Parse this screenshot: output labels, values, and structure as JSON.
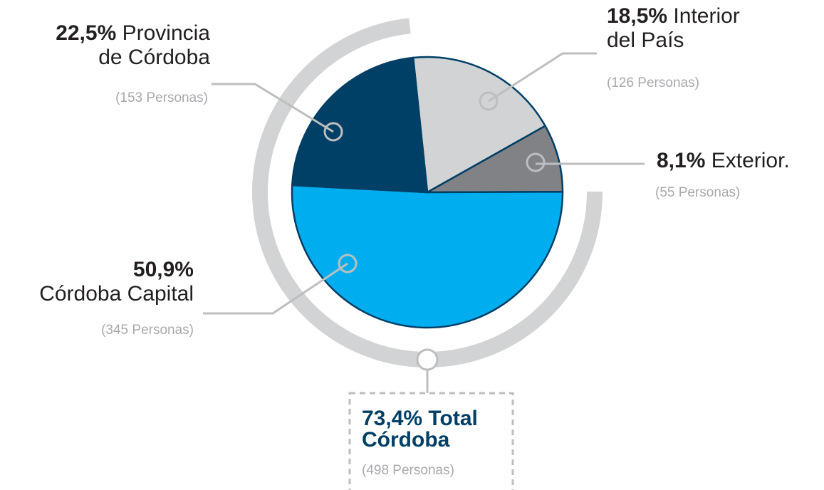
{
  "chart_data": {
    "type": "pie",
    "categories": [
      "Interior\ndel País",
      "Exterior.",
      "Córdoba Capital",
      "Provincia\nde Córdoba"
    ],
    "values": [
      18.5,
      8.1,
      50.9,
      22.5
    ],
    "value_labels": [
      "18,5%",
      "8,1%",
      "50,9%",
      "22,5%"
    ],
    "notes": [
      "(126 Personas)",
      "(55 Personas)",
      "(345 Personas)",
      "(153 Personas)"
    ],
    "colors": [
      "#d1d3d4",
      "#808285",
      "#00aeef",
      "#003f66"
    ],
    "total": {
      "value": 73.4,
      "value_label": "73,4%",
      "name": "Total\nCórdoba",
      "note": "(498 Personas)",
      "color": "#d1d3d4"
    }
  }
}
